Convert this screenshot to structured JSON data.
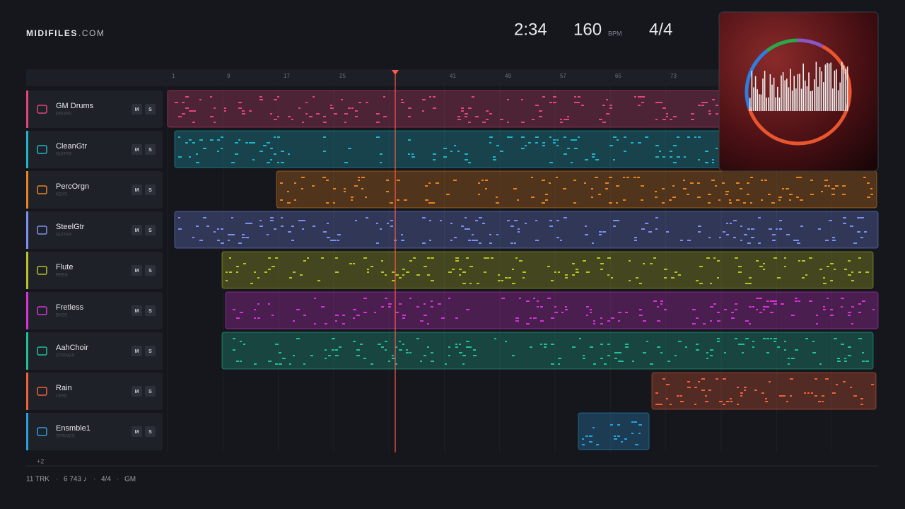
{
  "header": {
    "brand": "MIDIFILES",
    "brand_suffix": ".COM",
    "duration": "2:34",
    "tempo": "160",
    "tempo_unit": "BPM",
    "time_signature": "4/4"
  },
  "ruler": {
    "labels": [
      "1",
      "9",
      "17",
      "25",
      "41",
      "49",
      "57",
      "65",
      "73"
    ]
  },
  "tracks": [
    {
      "name": "GM Drums",
      "type": "DRUMS"
    },
    {
      "name": "CleanGtr",
      "type": "GUITAR"
    },
    {
      "name": "PercOrgn",
      "type": "KEYS"
    },
    {
      "name": "SteelGtr",
      "type": "GUITAR"
    },
    {
      "name": "Flute",
      "type": "REED"
    },
    {
      "name": "Fretless",
      "type": "BASS"
    },
    {
      "name": "AahChoir",
      "type": "STRINGS"
    },
    {
      "name": "Rain",
      "type": "LEAD"
    },
    {
      "name": "Ensmble1",
      "type": "STRINGS"
    }
  ],
  "buttons": {
    "mute": "M",
    "solo": "S"
  },
  "more_tracks": "+2",
  "footer": {
    "items": [
      "11 TRK",
      "6 743 ♪",
      "4/4",
      "GM"
    ],
    "separator": "·"
  }
}
